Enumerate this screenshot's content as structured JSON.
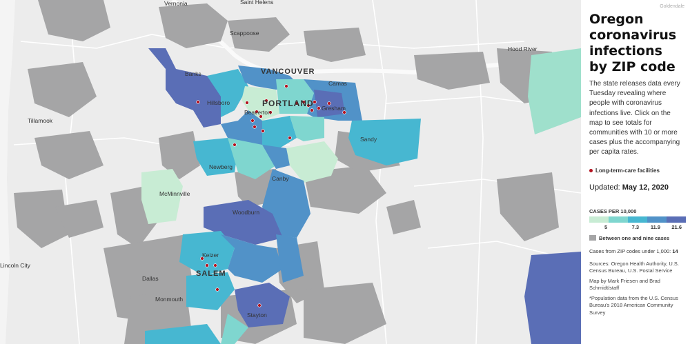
{
  "title": "Oregon coronavirus infections by ZIP code",
  "description": "The state releases data every Tuesday revealing where people with coronavirus infections live. Click on the map to see totals for communities with 10 or more cases plus the accompanying per capita rates.",
  "corner_label": "Goldendale",
  "ltc_label": "Long-term-care facilities",
  "updated_label": "Updated:",
  "updated_date": "May 12, 2020",
  "legend": {
    "title": "CASES PER 10,000",
    "colors": [
      "#c8ecd4",
      "#7fd6cf",
      "#47b7d1",
      "#5192c8",
      "#5a6eb6"
    ],
    "ticks": [
      "5",
      "7.3",
      "11.9",
      "21.6"
    ],
    "gray_label": "Between one and nine cases",
    "gray_color": "#a5a5a6"
  },
  "under_1000_label": "Cases from ZIP codes under 1,000:",
  "under_1000_value": "14",
  "sources": "Sources: Oregon Health Authority, U.S. Census Bureau, U.S. Postal Service",
  "credit": "Map by Mark Friesen and Brad Schmidt/staff",
  "footnote": "*Population data from the U.S. Census Bureau's 2018 American Community Survey",
  "map": {
    "cities": [
      "VANCOUVER",
      "PORTLAND",
      "SALEM"
    ],
    "towns": [
      "Vernonia",
      "Saint Helens",
      "Goldendale",
      "Scappoose",
      "Hood River",
      "Banks",
      "Camas",
      "Hillsboro",
      "Gresham",
      "Beaverton",
      "Tillamook",
      "Sandy",
      "Newberg",
      "Canby",
      "McMinnville",
      "Woodburn",
      "Keizer",
      "Dallas",
      "Monmouth",
      "Stayton",
      "Lincoln City"
    ]
  }
}
